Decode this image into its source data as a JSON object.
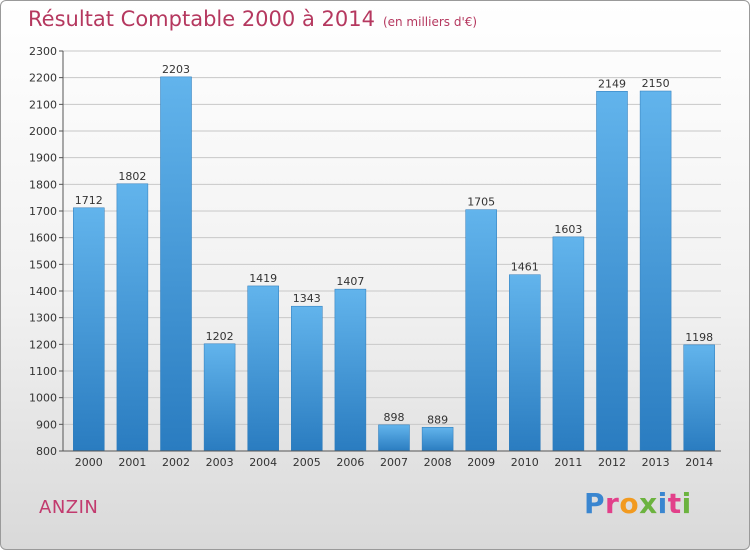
{
  "title": "Résultat Comptable 2000 à 2014",
  "subtitle": "(en milliers d'€)",
  "city": "ANZIN",
  "brand": {
    "name": "Proxiti",
    "letters": [
      "P",
      "r",
      "o",
      "x",
      "i",
      "t",
      "i"
    ],
    "letter_colors": [
      "#3a86d0",
      "#e2408a",
      "#f29a1f",
      "#6cb33f",
      "#3a86d0",
      "#e2408a",
      "#6cb33f"
    ]
  },
  "colors": {
    "title": "#b5385f",
    "bar_top": "#62b4ec",
    "bar_bottom": "#2a7cc0",
    "grid": "#c8c8c8"
  },
  "chart_data": {
    "type": "bar",
    "title": "Résultat Comptable 2000 à 2014",
    "ylabel": "en milliers d'€",
    "xlabel": "",
    "categories": [
      "2000",
      "2001",
      "2002",
      "2003",
      "2004",
      "2005",
      "2006",
      "2007",
      "2008",
      "2009",
      "2010",
      "2011",
      "2012",
      "2013",
      "2014"
    ],
    "values": [
      1712,
      1802,
      2203,
      1202,
      1419,
      1343,
      1407,
      898,
      889,
      1705,
      1461,
      1603,
      2149,
      2150,
      1198
    ],
    "ylim": [
      800,
      2300
    ],
    "yticks": [
      800,
      900,
      1000,
      1100,
      1200,
      1300,
      1400,
      1500,
      1600,
      1700,
      1800,
      1900,
      2000,
      2100,
      2200,
      2300
    ],
    "grid": true,
    "data_labels": true
  }
}
